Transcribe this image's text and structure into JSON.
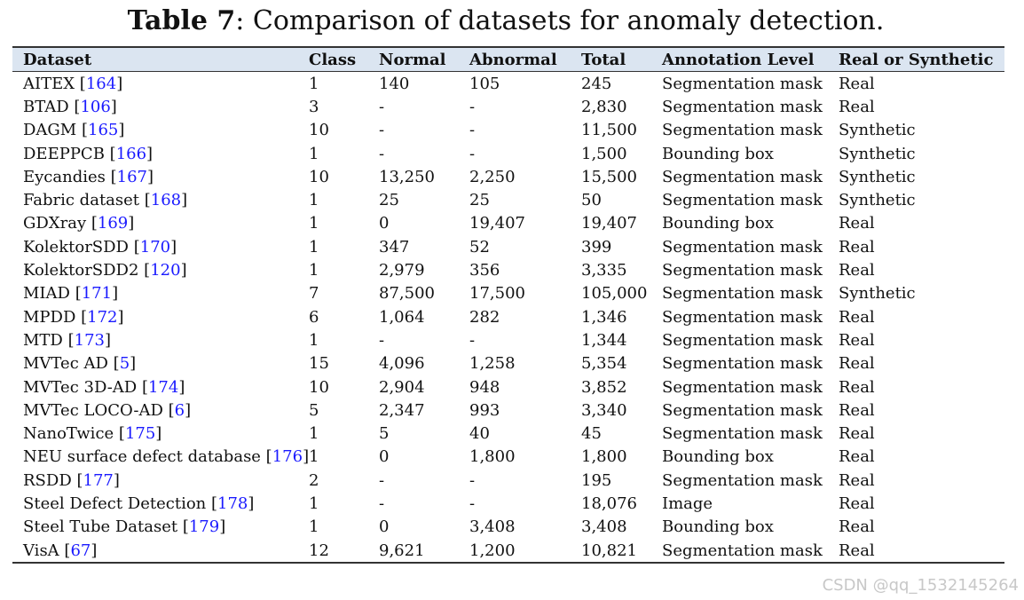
{
  "caption": {
    "label": "Table 7",
    "text": ": Comparison of datasets for anomaly detection."
  },
  "headers": [
    "Dataset",
    "Class",
    "Normal",
    "Abnormal",
    "Total",
    "Annotation Level",
    "Real or Synthetic"
  ],
  "rows": [
    {
      "name": "AITEX",
      "ref": "164",
      "class": "1",
      "normal": "140",
      "abnormal": "105",
      "total": "245",
      "annotation": "Segmentation mask",
      "type": "Real"
    },
    {
      "name": "BTAD",
      "ref": "106",
      "class": "3",
      "normal": "-",
      "abnormal": "-",
      "total": "2,830",
      "annotation": "Segmentation mask",
      "type": "Real"
    },
    {
      "name": "DAGM",
      "ref": "165",
      "class": "10",
      "normal": "-",
      "abnormal": "-",
      "total": "11,500",
      "annotation": "Segmentation mask",
      "type": "Synthetic"
    },
    {
      "name": "DEEPPCB",
      "ref": "166",
      "class": "1",
      "normal": "-",
      "abnormal": "-",
      "total": "1,500",
      "annotation": "Bounding box",
      "type": "Synthetic"
    },
    {
      "name": "Eycandies",
      "ref": "167",
      "class": "10",
      "normal": "13,250",
      "abnormal": "2,250",
      "total": "15,500",
      "annotation": "Segmentation mask",
      "type": "Synthetic"
    },
    {
      "name": "Fabric dataset",
      "ref": "168",
      "class": "1",
      "normal": "25",
      "abnormal": "25",
      "total": "50",
      "annotation": "Segmentation mask",
      "type": "Synthetic"
    },
    {
      "name": "GDXray",
      "ref": "169",
      "class": "1",
      "normal": "0",
      "abnormal": "19,407",
      "total": "19,407",
      "annotation": "Bounding box",
      "type": "Real"
    },
    {
      "name": "KolektorSDD",
      "ref": "170",
      "class": "1",
      "normal": "347",
      "abnormal": "52",
      "total": "399",
      "annotation": "Segmentation mask",
      "type": "Real"
    },
    {
      "name": "KolektorSDD2",
      "ref": "120",
      "class": "1",
      "normal": "2,979",
      "abnormal": "356",
      "total": "3,335",
      "annotation": "Segmentation mask",
      "type": "Real"
    },
    {
      "name": "MIAD",
      "ref": "171",
      "class": "7",
      "normal": "87,500",
      "abnormal": "17,500",
      "total": "105,000",
      "annotation": "Segmentation mask",
      "type": "Synthetic"
    },
    {
      "name": "MPDD",
      "ref": "172",
      "class": "6",
      "normal": "1,064",
      "abnormal": "282",
      "total": "1,346",
      "annotation": "Segmentation mask",
      "type": "Real"
    },
    {
      "name": "MTD",
      "ref": "173",
      "class": "1",
      "normal": "-",
      "abnormal": "-",
      "total": "1,344",
      "annotation": "Segmentation mask",
      "type": "Real"
    },
    {
      "name": "MVTec AD",
      "ref": "5",
      "class": "15",
      "normal": "4,096",
      "abnormal": "1,258",
      "total": "5,354",
      "annotation": "Segmentation mask",
      "type": "Real"
    },
    {
      "name": "MVTec 3D-AD",
      "ref": "174",
      "class": "10",
      "normal": "2,904",
      "abnormal": "948",
      "total": "3,852",
      "annotation": "Segmentation mask",
      "type": "Real"
    },
    {
      "name": "MVTec LOCO-AD",
      "ref": "6",
      "class": "5",
      "normal": "2,347",
      "abnormal": "993",
      "total": "3,340",
      "annotation": "Segmentation mask",
      "type": "Real"
    },
    {
      "name": "NanoTwice",
      "ref": "175",
      "class": "1",
      "normal": "5",
      "abnormal": "40",
      "total": "45",
      "annotation": "Segmentation mask",
      "type": "Real"
    },
    {
      "name": "NEU surface defect database",
      "ref": "176",
      "class": "1",
      "normal": "0",
      "abnormal": "1,800",
      "total": "1,800",
      "annotation": "Bounding box",
      "type": "Real"
    },
    {
      "name": "RSDD",
      "ref": "177",
      "class": "2",
      "normal": "-",
      "abnormal": "-",
      "total": "195",
      "annotation": "Segmentation mask",
      "type": "Real"
    },
    {
      "name": "Steel Defect Detection",
      "ref": "178",
      "class": "1",
      "normal": "-",
      "abnormal": "-",
      "total": "18,076",
      "annotation": "Image",
      "type": "Real"
    },
    {
      "name": "Steel Tube Dataset",
      "ref": "179",
      "class": "1",
      "normal": "0",
      "abnormal": "3,408",
      "total": "3,408",
      "annotation": "Bounding box",
      "type": "Real"
    },
    {
      "name": "VisA",
      "ref": "67",
      "class": "12",
      "normal": "9,621",
      "abnormal": "1,200",
      "total": "10,821",
      "annotation": "Segmentation mask",
      "type": "Real"
    }
  ],
  "watermark": "CSDN @qq_1532145264",
  "colors": {
    "header_bg": "#dbe5f1",
    "citation": "#1a1aff",
    "watermark": "#c8c8c8"
  }
}
